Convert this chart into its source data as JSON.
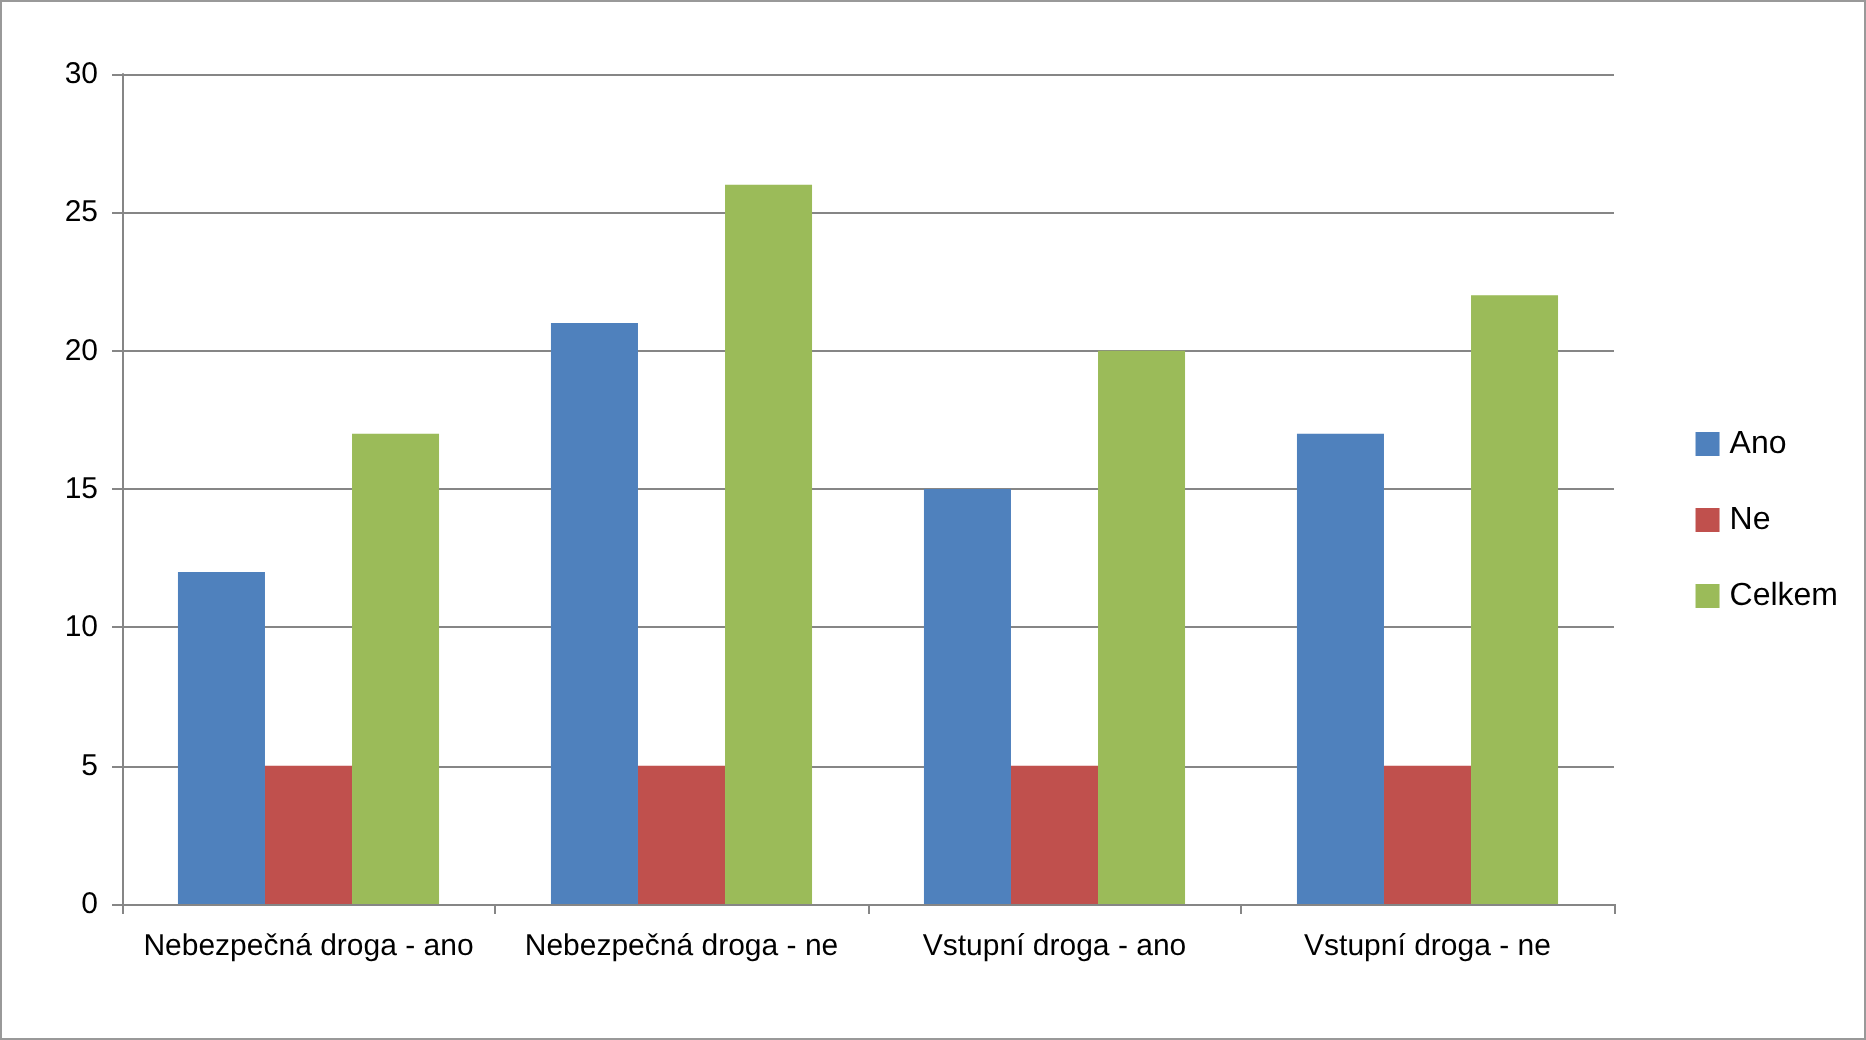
{
  "chart_data": {
    "type": "bar",
    "categories": [
      "Nebezpečná droga - ano",
      "Nebezpečná droga - ne",
      "Vstupní droga - ano",
      "Vstupní droga - ne"
    ],
    "series": [
      {
        "name": "Ano",
        "color": "#4f81bd",
        "values": [
          12,
          21,
          15,
          17
        ]
      },
      {
        "name": "Ne",
        "color": "#c0504d",
        "values": [
          5,
          5,
          5,
          5
        ]
      },
      {
        "name": "Celkem",
        "color": "#9bbb59",
        "values": [
          17,
          26,
          20,
          22
        ]
      }
    ],
    "ylim": [
      0,
      30
    ],
    "yticks": [
      0,
      5,
      10,
      15,
      20,
      25,
      30
    ],
    "grid": "y",
    "legend": "right"
  }
}
